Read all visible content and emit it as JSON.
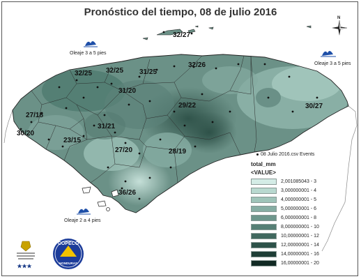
{
  "title": "Pronóstico del tiempo, 08 de julio 2016",
  "colors": {
    "land": "#5b8278",
    "ocean": "#ffffff",
    "border": "#222222"
  },
  "temperatures": [
    {
      "label": "32/27"
    },
    {
      "label": "32/25"
    },
    {
      "label": "32/25"
    },
    {
      "label": "31/25"
    },
    {
      "label": "32/26"
    },
    {
      "label": "31/20"
    },
    {
      "label": "29/22"
    },
    {
      "label": "27/18"
    },
    {
      "label": "30/20"
    },
    {
      "label": "31/21"
    },
    {
      "label": "23/15"
    },
    {
      "label": "27/20"
    },
    {
      "label": "28/19"
    },
    {
      "label": "36/26"
    },
    {
      "label": "30/27"
    }
  ],
  "waves": [
    {
      "label": "Oleaje 3 a 5 pies"
    },
    {
      "label": "Oleaje 3 a 5 pies"
    },
    {
      "label": "Oleaje 2 a 4 pies"
    }
  ],
  "compass_label": "N",
  "legend": {
    "events_label": "08 Julio 2016.csv Events",
    "field_label": "total_mm",
    "value_label": "<VALUE>",
    "classes": [
      {
        "label": "2,001085043 - 3",
        "color": "#d4ece6"
      },
      {
        "label": "3,000000001 - 4",
        "color": "#b9d9d0"
      },
      {
        "label": "4,000000001 - 5",
        "color": "#9fc4b9"
      },
      {
        "label": "5,000000001 - 6",
        "color": "#86ada3"
      },
      {
        "label": "6,000000001 - 8",
        "color": "#6d968c"
      },
      {
        "label": "8,000000001 - 10",
        "color": "#567f75"
      },
      {
        "label": "10,00000001 - 12",
        "color": "#40685e"
      },
      {
        "label": "12,00000001 - 14",
        "color": "#2d5249"
      },
      {
        "label": "14,00000001 - 16",
        "color": "#1e3e36"
      },
      {
        "label": "16,00000001 - 20",
        "color": "#112a24"
      }
    ]
  },
  "logos": {
    "copeco_top": "COPECO",
    "copeco_bottom": "HONDURAS"
  }
}
